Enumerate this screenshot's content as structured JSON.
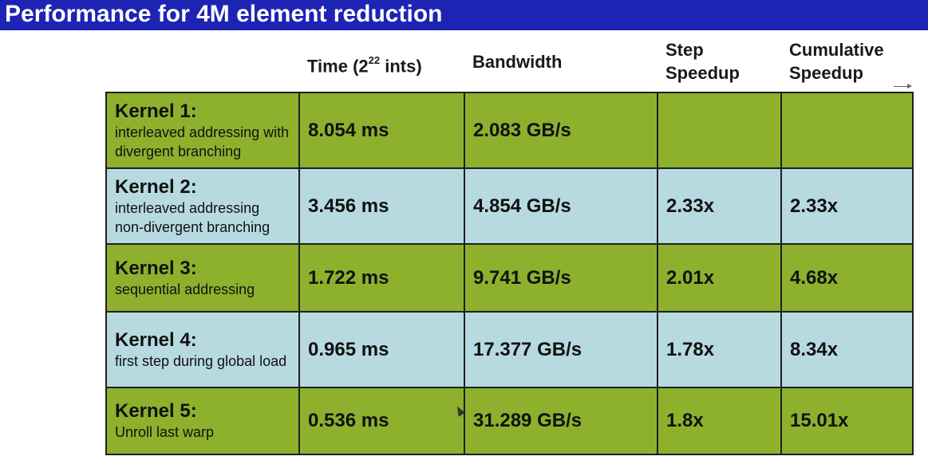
{
  "title": "Performance for 4M element reduction",
  "headers": {
    "time_pre": "Time (2",
    "time_exp": "22",
    "time_post": " ints)",
    "bandwidth": "Bandwidth",
    "step_line1": "Step",
    "step_line2": "Speedup",
    "cum_line1": "Cumulative",
    "cum_line2": "Speedup"
  },
  "rows": [
    {
      "kernel": "Kernel 1:",
      "desc": "interleaved addressing with divergent branching",
      "time": "8.054 ms",
      "bandwidth": "2.083 GB/s",
      "step": "",
      "cumulative": "",
      "color": "#8db12c"
    },
    {
      "kernel": "Kernel 2:",
      "desc": "interleaved addressing non-divergent branching",
      "time": "3.456 ms",
      "bandwidth": "4.854 GB/s",
      "step": "2.33x",
      "cumulative": "2.33x",
      "color": "#b7dae0"
    },
    {
      "kernel": "Kernel 3:",
      "desc": "sequential addressing",
      "time": "1.722 ms",
      "bandwidth": "9.741 GB/s",
      "step": "2.01x",
      "cumulative": "4.68x",
      "color": "#8db12c"
    },
    {
      "kernel": "Kernel 4:",
      "desc": "first step during global load",
      "time": "0.965 ms",
      "bandwidth": "17.377 GB/s",
      "step": "1.78x",
      "cumulative": "8.34x",
      "color": "#b7dae0"
    },
    {
      "kernel": "Kernel 5:",
      "desc": "Unroll last warp",
      "time": "0.536 ms",
      "bandwidth": "31.289 GB/s",
      "step": "1.8x",
      "cumulative": "15.01x",
      "color": "#8db12c"
    }
  ],
  "colors": {
    "title_bar": "#1d24b3",
    "green": "#8db12c",
    "blue": "#b7dae0"
  }
}
